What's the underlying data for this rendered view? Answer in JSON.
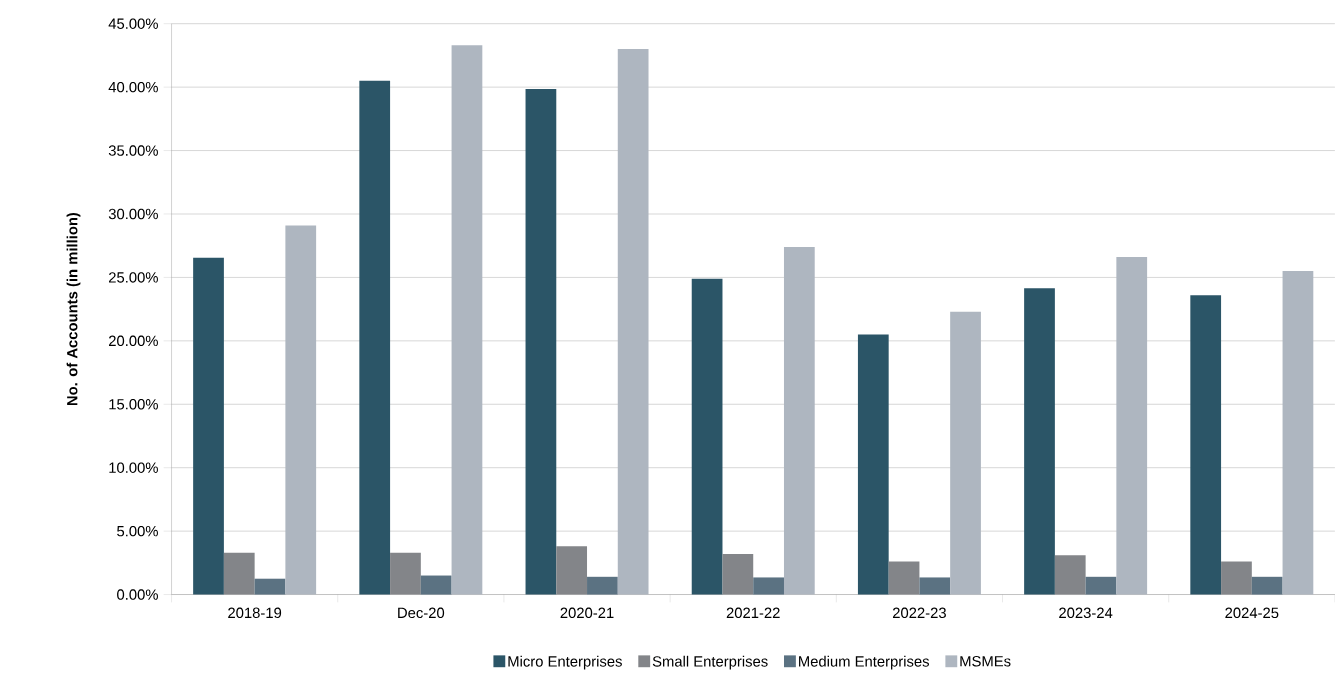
{
  "chart_data": {
    "type": "bar",
    "ylabel": "No. of Accounts (in million)",
    "categories": [
      "2018-19",
      "Dec-20",
      "2020-21",
      "2021-22",
      "2022-23",
      "2023-24",
      "2024-25"
    ],
    "series": [
      {
        "name": "Micro Enterprises",
        "color": "#2b5567",
        "values": [
          26.55,
          40.5,
          39.85,
          24.9,
          20.5,
          24.15,
          23.6
        ]
      },
      {
        "name": "Small Enterprises",
        "color": "#838589",
        "values": [
          3.3,
          3.3,
          3.8,
          3.2,
          2.6,
          3.1,
          2.6
        ]
      },
      {
        "name": "Medium Enterprises",
        "color": "#5b7282",
        "values": [
          1.25,
          1.5,
          1.4,
          1.35,
          1.35,
          1.4,
          1.4
        ]
      },
      {
        "name": "MSMEs",
        "color": "#aeb6c0",
        "values": [
          29.1,
          43.3,
          43.0,
          27.4,
          22.3,
          26.6,
          25.5
        ]
      }
    ],
    "ylim": [
      0,
      45
    ],
    "yticks": [
      {
        "value": 0,
        "label": "0.00%"
      },
      {
        "value": 5,
        "label": "5.00%"
      },
      {
        "value": 10,
        "label": "10.00%"
      },
      {
        "value": 15,
        "label": "15.00%"
      },
      {
        "value": 20,
        "label": "20.00%"
      },
      {
        "value": 25,
        "label": "25.00%"
      },
      {
        "value": 30,
        "label": "30.00%"
      },
      {
        "value": 35,
        "label": "35.00%"
      },
      {
        "value": 40,
        "label": "40.00%"
      },
      {
        "value": 45,
        "label": "45.00%"
      }
    ],
    "grid": "y",
    "legend": "bottom"
  }
}
